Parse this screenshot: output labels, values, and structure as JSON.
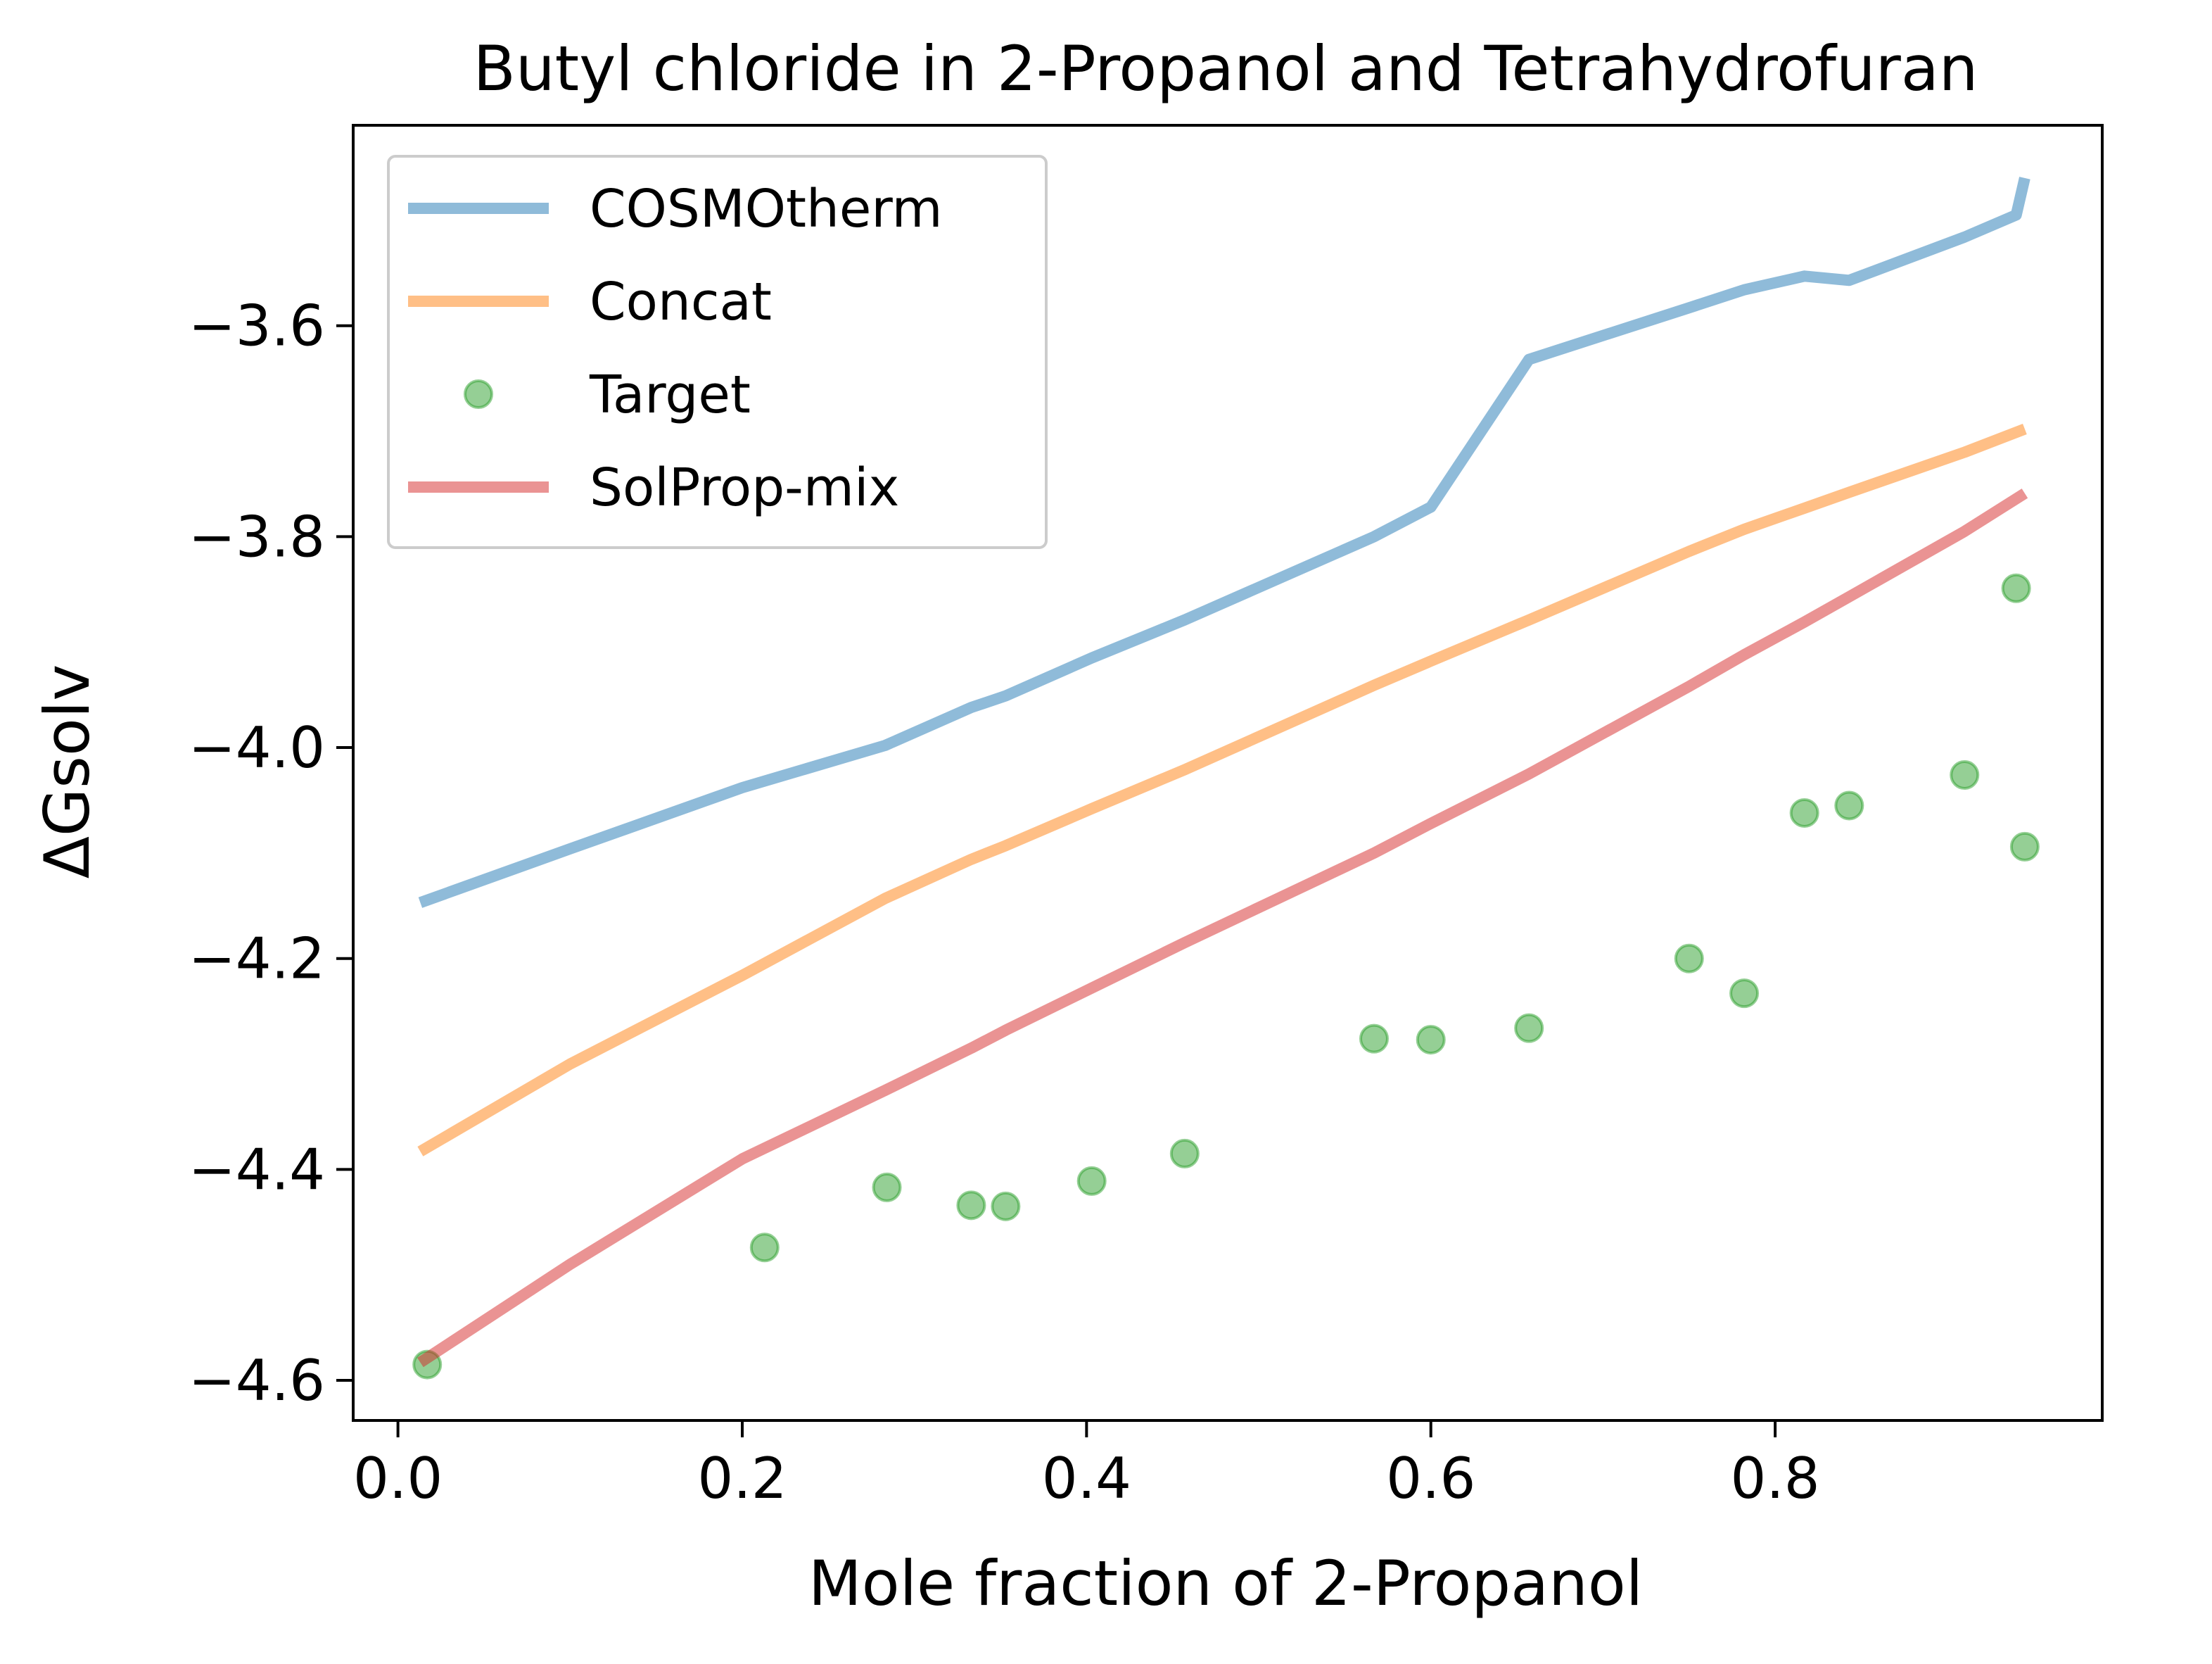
{
  "chart_data": {
    "type": "line",
    "title": "Butyl chloride in 2-Propanol and Tetrahydrofuran",
    "xlabel": "Mole fraction of 2-Propanol",
    "ylabel": "ΔGsolv",
    "xlim": [
      -0.026,
      0.99
    ],
    "ylim": [
      -4.638,
      -3.41
    ],
    "xticks": [
      0.0,
      0.2,
      0.4,
      0.6,
      0.8
    ],
    "xtick_labels": [
      "0.0",
      "0.2",
      "0.4",
      "0.6",
      "0.8"
    ],
    "yticks": [
      -3.6,
      -3.8,
      -4.0,
      -4.2,
      -4.4,
      -4.6
    ],
    "ytick_labels": [
      "−3.6",
      "−3.8",
      "−4.0",
      "−4.2",
      "−4.4",
      "−4.6"
    ],
    "legend_position": "top-left",
    "series": [
      {
        "name": "COSMOtherm",
        "kind": "line",
        "color": "#1f77b4",
        "x": [
          0.013,
          0.1,
          0.2,
          0.283,
          0.333,
          0.353,
          0.403,
          0.457,
          0.567,
          0.6,
          0.657,
          0.75,
          0.782,
          0.817,
          0.843,
          0.91,
          0.94,
          0.945
        ],
        "y": [
          -4.147,
          -4.096,
          -4.038,
          -3.998,
          -3.962,
          -3.951,
          -3.915,
          -3.879,
          -3.8,
          -3.772,
          -3.632,
          -3.583,
          -3.566,
          -3.553,
          -3.557,
          -3.516,
          -3.495,
          -3.46
        ]
      },
      {
        "name": "Concat",
        "kind": "line",
        "color": "#ff7f0e",
        "x": [
          0.013,
          0.1,
          0.2,
          0.283,
          0.333,
          0.353,
          0.403,
          0.457,
          0.567,
          0.6,
          0.657,
          0.75,
          0.782,
          0.817,
          0.843,
          0.91,
          0.945
        ],
        "y": [
          -4.383,
          -4.3,
          -4.216,
          -4.143,
          -4.106,
          -4.093,
          -4.058,
          -4.021,
          -3.941,
          -3.918,
          -3.879,
          -3.814,
          -3.793,
          -3.773,
          -3.758,
          -3.72,
          -3.698
        ]
      },
      {
        "name": "Target",
        "kind": "points",
        "color": "#2ca02c",
        "x": [
          0.017,
          0.213,
          0.284,
          0.333,
          0.353,
          0.403,
          0.457,
          0.567,
          0.6,
          0.657,
          0.75,
          0.782,
          0.817,
          0.843,
          0.91,
          0.94,
          0.945
        ],
        "y": [
          -4.585,
          -4.474,
          -4.417,
          -4.434,
          -4.435,
          -4.411,
          -4.385,
          -4.276,
          -4.277,
          -4.266,
          -4.2,
          -4.233,
          -4.062,
          -4.055,
          -4.026,
          -3.849,
          -4.094
        ]
      },
      {
        "name": "SolProp-mix",
        "kind": "line",
        "color": "#d62728",
        "x": [
          0.013,
          0.1,
          0.2,
          0.283,
          0.333,
          0.353,
          0.403,
          0.457,
          0.567,
          0.6,
          0.657,
          0.75,
          0.782,
          0.817,
          0.843,
          0.91,
          0.945
        ],
        "y": [
          -4.583,
          -4.49,
          -4.39,
          -4.325,
          -4.285,
          -4.268,
          -4.228,
          -4.185,
          -4.1,
          -4.072,
          -4.025,
          -3.942,
          -3.912,
          -3.881,
          -3.857,
          -3.795,
          -3.759
        ]
      }
    ]
  }
}
